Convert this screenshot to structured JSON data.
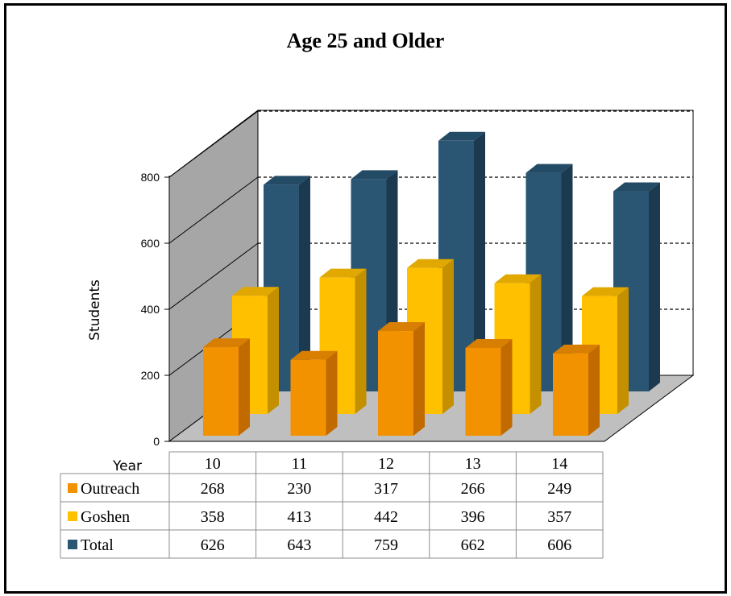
{
  "chart_data": {
    "type": "bar",
    "title": "Age 25 and Older",
    "ylabel": "Students",
    "table_header_label": "Year",
    "ylim": [
      0,
      800
    ],
    "yticks": [
      0,
      200,
      400,
      600,
      800
    ],
    "grid": true,
    "categories": [
      "10",
      "11",
      "12",
      "13",
      "14"
    ],
    "series": [
      {
        "name": "Outreach",
        "values": [
          268,
          230,
          317,
          266,
          249
        ],
        "color": "#F39200",
        "side_color": "#C06A00",
        "top_color": "#D87E00"
      },
      {
        "name": "Goshen",
        "values": [
          358,
          413,
          442,
          396,
          357
        ],
        "color": "#FFC000",
        "side_color": "#C49000",
        "top_color": "#E0A800"
      },
      {
        "name": "Total",
        "values": [
          626,
          643,
          759,
          662,
          606
        ],
        "color": "#2A5573",
        "side_color": "#1B3A50",
        "top_color": "#244B66"
      }
    ]
  }
}
